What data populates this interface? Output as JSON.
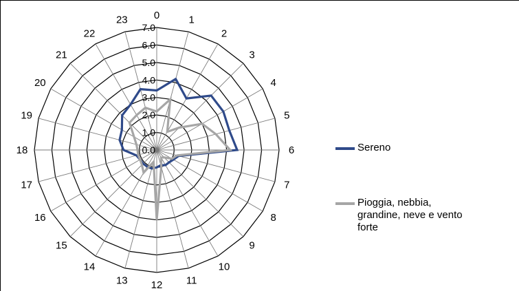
{
  "chart_data": {
    "type": "radar",
    "categories": [
      "0",
      "1",
      "2",
      "3",
      "4",
      "5",
      "6",
      "7",
      "8",
      "9",
      "10",
      "11",
      "12",
      "13",
      "14",
      "15",
      "16",
      "17",
      "18",
      "19",
      "20",
      "21",
      "22",
      "23"
    ],
    "rlim": [
      0,
      7
    ],
    "radial_ticks": [
      "0.0",
      "1.0",
      "2.0",
      "3.0",
      "4.0",
      "5.0",
      "6.0",
      "7.0"
    ],
    "grid": true,
    "legend_position": "right",
    "series": [
      {
        "name": "Sereno",
        "color": "#2f4a8a",
        "values": [
          3.4,
          4.2,
          3.4,
          4.4,
          4.4,
          4.3,
          4.6,
          1.3,
          1.1,
          1.0,
          1.0,
          0.9,
          1.0,
          1.1,
          1.1,
          1.1,
          1.1,
          1.2,
          1.9,
          2.2,
          2.3,
          2.8,
          3.0,
          3.6
        ]
      },
      {
        "name": "Pioggia, nebbia,\ngrandine, neve e vento\nforte",
        "color": "#a6a6a6",
        "values": [
          2.2,
          3.0,
          1.2,
          1.8,
          3.0,
          3.5,
          4.2,
          1.2,
          1.0,
          0.6,
          0.5,
          1.0,
          4.0,
          0.7,
          1.5,
          1.2,
          1.1,
          1.1,
          1.1,
          1.2,
          1.5,
          2.2,
          2.3,
          2.5
        ]
      }
    ]
  }
}
